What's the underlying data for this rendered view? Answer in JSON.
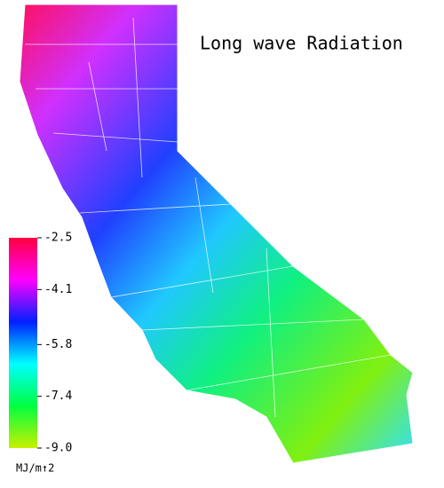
{
  "title": "Long wave Radiation",
  "colorbar": {
    "range": [
      -9,
      -2.5
    ],
    "ticks": [
      -2.5,
      -4.1,
      -5.8,
      -7.4,
      {
        "value": -9,
        "label": "-9.0"
      }
    ],
    "colors": [
      "#c8f000",
      "#00ff40",
      "#00ffff",
      "#0020ff",
      "#ff00ff",
      "#ff0040"
    ],
    "unit": "MJ/m↑2"
  }
}
